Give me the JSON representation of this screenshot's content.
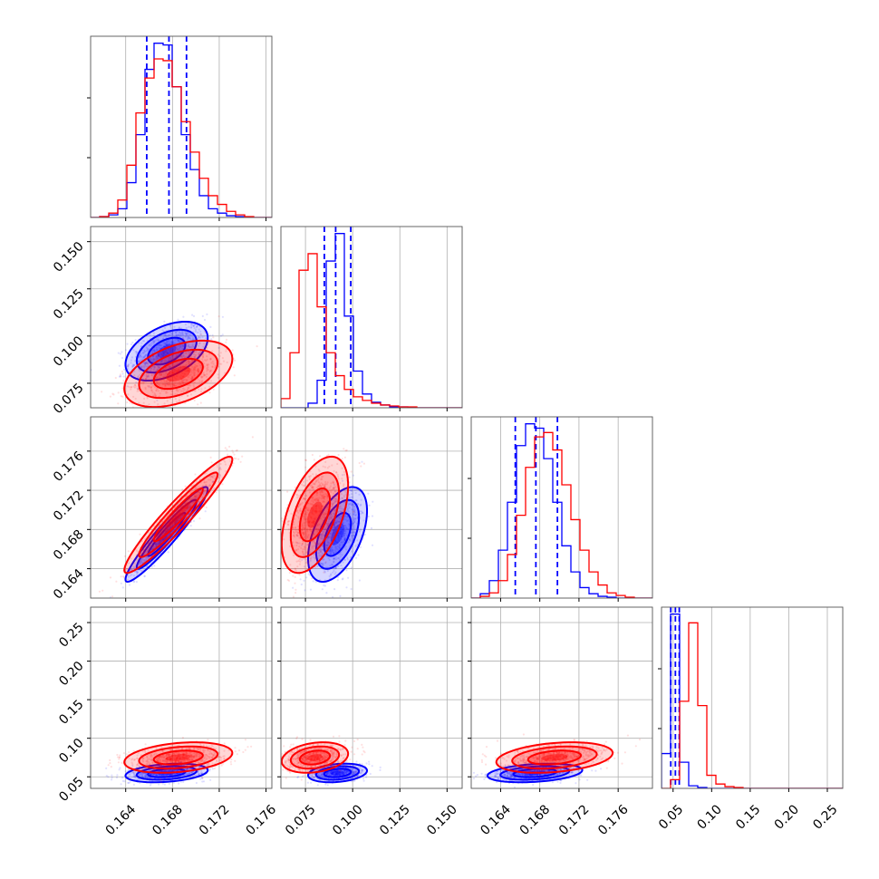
{
  "colors": {
    "sample_a": "#0000ff",
    "sample_b": "#ff0000",
    "grid": "#b0b0b0"
  },
  "chart_data": {
    "type": "corner",
    "grid": true,
    "parameters": [
      {
        "range": [
          0.161,
          0.1765
        ],
        "ticks": [
          0.164,
          0.168,
          0.172,
          0.176
        ],
        "tick_labels": [
          "0.164",
          "0.168",
          "0.172",
          "0.176"
        ]
      },
      {
        "range": [
          0.062,
          0.158
        ],
        "ticks": [
          0.075,
          0.1,
          0.125,
          0.15
        ],
        "tick_labels": [
          "0.075",
          "0.100",
          "0.125",
          "0.150"
        ]
      },
      {
        "range": [
          0.161,
          0.1795
        ],
        "ticks": [
          0.164,
          0.168,
          0.172,
          0.176
        ],
        "tick_labels": [
          "0.164",
          "0.168",
          "0.172",
          "0.176"
        ]
      },
      {
        "range": [
          0.035,
          0.27
        ],
        "ticks": [
          0.05,
          0.1,
          0.15,
          0.2,
          0.25
        ],
        "tick_labels": [
          "0.05",
          "0.10",
          "0.15",
          "0.20",
          "0.25"
        ]
      }
    ],
    "series": [
      {
        "color": "#0000ff",
        "means": [
          0.1675,
          0.092,
          0.1675,
          0.055
        ],
        "stds": [
          0.0016,
          0.0071,
          0.0022,
          0.0055
        ],
        "corr": [
          [
            1,
            0.45,
            0.95,
            0.3
          ],
          [
            0.45,
            1,
            0.5,
            0.25
          ],
          [
            0.95,
            0.5,
            1,
            0.3
          ],
          [
            0.3,
            0.25,
            0.3,
            1
          ]
        ],
        "quantiles": [
          [
            0.1658,
            0.1677,
            0.1692
          ],
          [
            0.085,
            0.091,
            0.099
          ],
          [
            0.1655,
            0.1676,
            0.1698
          ],
          [
            0.047,
            0.053,
            0.058
          ]
        ],
        "histograms": [
          {
            "edges": [
              0.161,
              0.1765
            ],
            "counts": [
              0,
              1,
              3,
              10,
              40,
              95,
              170,
              200,
              198,
              150,
              95,
              55,
              25,
              10,
              5,
              2,
              1,
              0,
              0,
              0
            ]
          },
          {
            "edges": [
              0.062,
              0.158
            ],
            "counts": [
              0,
              0,
              0,
              5,
              30,
              160,
              190,
              100,
              40,
              15,
              6,
              3,
              1,
              1,
              0,
              0,
              0,
              0,
              0,
              0
            ]
          },
          {
            "edges": [
              0.161,
              0.1795
            ],
            "counts": [
              0,
              5,
              20,
              55,
              110,
              175,
              200,
              195,
              160,
              110,
              60,
              30,
              12,
              5,
              2,
              1,
              0,
              0,
              0,
              0
            ]
          },
          {
            "edges": [
              0.035,
              0.27
            ],
            "counts": [
              40,
              200,
              30,
              3,
              1,
              0,
              0,
              0,
              0,
              0,
              0,
              0,
              0,
              0,
              0,
              0,
              0,
              0,
              0,
              0
            ]
          }
        ]
      },
      {
        "color": "#ff0000",
        "means": [
          0.1685,
          0.08,
          0.1695,
          0.075
        ],
        "stds": [
          0.0021,
          0.008,
          0.0027,
          0.009
        ],
        "corr": [
          [
            1,
            0.45,
            0.95,
            0.3
          ],
          [
            0.45,
            1,
            0.5,
            0.25
          ],
          [
            0.95,
            0.5,
            1,
            0.3
          ],
          [
            0.3,
            0.25,
            0.3,
            1
          ]
        ],
        "quantiles": [],
        "histograms": [
          {
            "edges": [
              0.161,
              0.1765
            ],
            "counts": [
              0,
              1,
              5,
              20,
              60,
              120,
              160,
              182,
              180,
              150,
              110,
              75,
              45,
              25,
              15,
              7,
              3,
              1,
              0,
              0
            ]
          },
          {
            "edges": [
              0.062,
              0.158
            ],
            "counts": [
              10,
              60,
              150,
              168,
              110,
              60,
              35,
              20,
              12,
              8,
              5,
              3,
              2,
              1,
              1,
              0,
              0,
              0,
              0,
              0
            ]
          },
          {
            "edges": [
              0.161,
              0.1795
            ],
            "counts": [
              0,
              2,
              6,
              20,
              50,
              95,
              150,
              185,
              190,
              170,
              130,
              90,
              55,
              30,
              15,
              6,
              3,
              1,
              0,
              0
            ]
          },
          {
            "edges": [
              0.035,
              0.27
            ],
            "counts": [
              0,
              10,
              100,
              190,
              95,
              15,
              5,
              2,
              1,
              0,
              0,
              0,
              0,
              0,
              0,
              0,
              0,
              0,
              0,
              0
            ]
          }
        ]
      }
    ]
  }
}
